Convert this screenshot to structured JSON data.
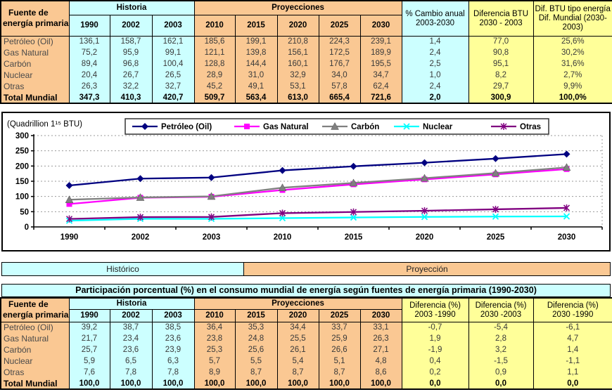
{
  "colors": {
    "orange": "#FAC893",
    "cyan": "#CCFFFF",
    "yellow": "#FFFF99",
    "border": "#000000"
  },
  "top_table": {
    "row_header": {
      "line1": "Fuente de",
      "line2": "energía primaria"
    },
    "history_label": "Historia",
    "projections_label": "Proyecciones",
    "history_years": [
      "1990",
      "2002",
      "2003"
    ],
    "projection_years": [
      "2010",
      "2015",
      "2020",
      "2025",
      "2030"
    ],
    "extra_columns": [
      {
        "line1": "% Cambio anual",
        "line2": "2003-2030",
        "bg": "bg-cyan"
      },
      {
        "line1": "Diferencia BTU",
        "line2": "2030 - 2003",
        "bg": "bg-yellow"
      },
      {
        "line1": "Dif. BTU tipo energía /",
        "line2": "Dif. Mundial (2030-2003)",
        "bg": "bg-yellow"
      }
    ],
    "rows": [
      {
        "label": "Petróleo (Oil)",
        "bold": false,
        "values": [
          "136,1",
          "158,7",
          "162,1",
          "185,6",
          "199,1",
          "210,8",
          "224,3",
          "239,1",
          "1,4",
          "77,0",
          "25,6%"
        ]
      },
      {
        "label": "Gas Natural",
        "bold": false,
        "values": [
          "75,2",
          "95,9",
          "99,1",
          "121,1",
          "139,8",
          "156,1",
          "172,5",
          "189,9",
          "2,4",
          "90,8",
          "30,2%"
        ]
      },
      {
        "label": "Carbón",
        "bold": false,
        "values": [
          "89,4",
          "96,8",
          "100,4",
          "128,8",
          "144,4",
          "160,1",
          "176,7",
          "195,5",
          "2,5",
          "95,1",
          "31,6%"
        ]
      },
      {
        "label": "Nuclear",
        "bold": false,
        "values": [
          "20,4",
          "26,7",
          "26,5",
          "28,9",
          "31,0",
          "32,9",
          "34,0",
          "34,7",
          "1,0",
          "8,2",
          "2,7%"
        ]
      },
      {
        "label": "Otras",
        "bold": false,
        "values": [
          "26,3",
          "32,2",
          "32,7",
          "45,2",
          "49,1",
          "53,1",
          "57,8",
          "62,4",
          "2,4",
          "29,7",
          "9,9%"
        ]
      },
      {
        "label": "Total Mundial",
        "bold": true,
        "values": [
          "347,3",
          "410,3",
          "420,7",
          "509,7",
          "563,4",
          "613,0",
          "665,4",
          "721,6",
          "2,0",
          "300,9",
          "100,0%"
        ]
      }
    ]
  },
  "chart_data": {
    "type": "line",
    "title": "",
    "unit_label": "(Quadrillion 1¹⁵ BTU)",
    "categories": [
      "1990",
      "2002",
      "2003",
      "2010",
      "2015",
      "2020",
      "2025",
      "2030"
    ],
    "series": [
      {
        "name": "Petróleo (Oil)",
        "color": "#000080",
        "marker": "diamond",
        "values": [
          136.1,
          158.7,
          162.1,
          185.6,
          199.1,
          210.8,
          224.3,
          239.1
        ]
      },
      {
        "name": "Gas Natural",
        "color": "#FF00FF",
        "marker": "square",
        "values": [
          75.2,
          95.9,
          99.1,
          121.1,
          139.8,
          156.1,
          172.5,
          189.9
        ]
      },
      {
        "name": "Carbón",
        "color": "#808080",
        "marker": "triangle",
        "values": [
          89.4,
          96.8,
          100.4,
          128.8,
          144.4,
          160.1,
          176.7,
          195.5
        ]
      },
      {
        "name": "Nuclear",
        "color": "#00FFFF",
        "marker": "x",
        "values": [
          20.4,
          26.7,
          26.5,
          28.9,
          31.0,
          32.9,
          34.0,
          34.7
        ]
      },
      {
        "name": "Otras",
        "color": "#800080",
        "marker": "asterisk",
        "values": [
          26.3,
          32.2,
          32.7,
          45.2,
          49.1,
          53.1,
          57.8,
          62.4
        ]
      }
    ],
    "ylim": [
      0,
      300
    ],
    "yticks": [
      0,
      50,
      100,
      150,
      200,
      250,
      300
    ],
    "grid": "dashed-horizontal",
    "legend_position": "top-center",
    "xlabel": "",
    "ylabel": ""
  },
  "bands": {
    "historico": "Histórico",
    "proyeccion": "Proyección"
  },
  "bottom_table": {
    "title": "Participación porcentual (%) en el consumo mundial de energía según fuentes de energía primaria (1990-2030)",
    "row_header": {
      "line1": "Fuente de",
      "line2": "energía primaria"
    },
    "history_label": "Historia",
    "projections_label": "Proyecciones",
    "history_years": [
      "1990",
      "2002",
      "2003"
    ],
    "projection_years": [
      "2010",
      "2015",
      "2020",
      "2025",
      "2030"
    ],
    "extra_columns": [
      {
        "line1": "Diferencia (%)",
        "line2": "2003 -1990",
        "bg": "bg-yellow"
      },
      {
        "line1": "Diferencia (%)",
        "line2": "2030 -2003",
        "bg": "bg-yellow"
      },
      {
        "line1": "Diferencia (%)",
        "line2": "2030 -1990",
        "bg": "bg-yellow"
      }
    ],
    "rows": [
      {
        "label": "Petróleo (Oil)",
        "bold": false,
        "values": [
          "39,2",
          "38,7",
          "38,5",
          "36,4",
          "35,3",
          "34,4",
          "33,7",
          "33,1",
          "-0,7",
          "-5,4",
          "-6,1"
        ]
      },
      {
        "label": "Gas Natural",
        "bold": false,
        "values": [
          "21,7",
          "23,4",
          "23,6",
          "23,8",
          "24,8",
          "25,5",
          "25,9",
          "26,3",
          "1,9",
          "2,8",
          "4,7"
        ]
      },
      {
        "label": "Carbón",
        "bold": false,
        "values": [
          "25,7",
          "23,6",
          "23,9",
          "25,3",
          "25,6",
          "26,1",
          "26,6",
          "27,1",
          "-1,9",
          "3,2",
          "1,4"
        ]
      },
      {
        "label": "Nuclear",
        "bold": false,
        "values": [
          "5,9",
          "6,5",
          "6,3",
          "5,7",
          "5,5",
          "5,4",
          "5,1",
          "4,8",
          "0,4",
          "-1,5",
          "-1,1"
        ]
      },
      {
        "label": "Otras",
        "bold": false,
        "values": [
          "7,6",
          "7,8",
          "7,8",
          "8,9",
          "8,7",
          "8,7",
          "8,7",
          "8,6",
          "0,2",
          "0,9",
          "1,1"
        ]
      },
      {
        "label": "Total Mundial",
        "bold": true,
        "values": [
          "100,0",
          "100,0",
          "100,0",
          "100,0",
          "100,0",
          "100,0",
          "100,0",
          "100,0",
          "0,0",
          "0,0",
          "0,0"
        ]
      }
    ]
  }
}
